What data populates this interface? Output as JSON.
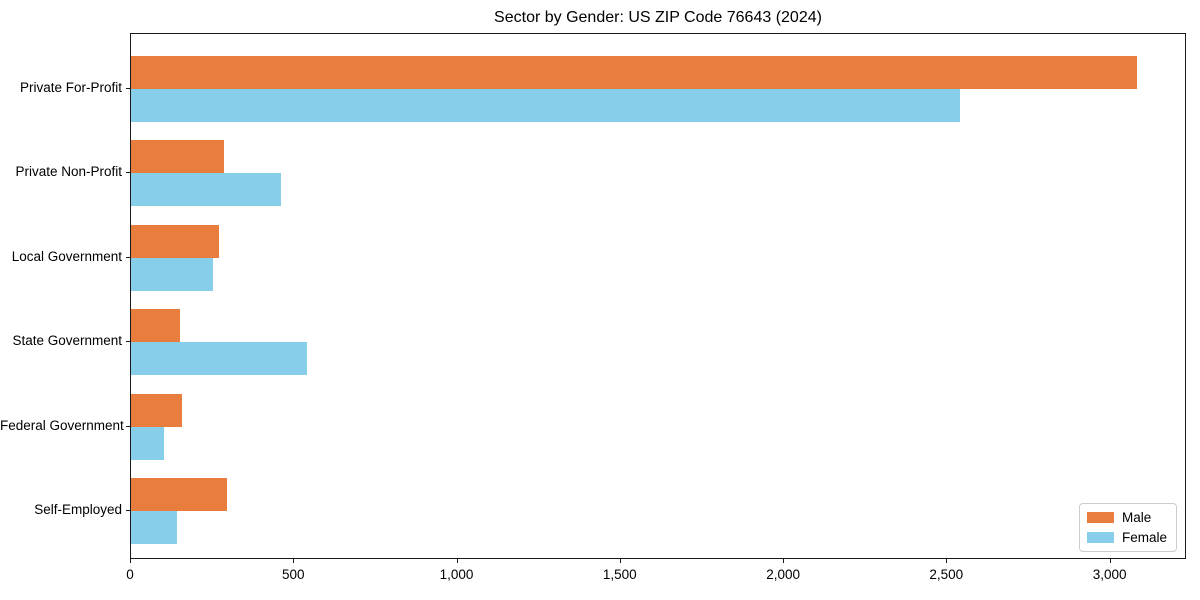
{
  "chart_data": {
    "type": "bar",
    "orientation": "horizontal",
    "title": "Sector by Gender: US ZIP Code 76643 (2024)",
    "categories": [
      "Private For-Profit",
      "Private Non-Profit",
      "Local Government",
      "State Government",
      "Federal Government",
      "Self-Employed"
    ],
    "series": [
      {
        "name": "Male",
        "color": "#E87D3E",
        "values": [
          3080,
          285,
          270,
          150,
          155,
          295
        ]
      },
      {
        "name": "Female",
        "color": "#87CEEB",
        "values": [
          2540,
          460,
          250,
          540,
          100,
          140
        ]
      }
    ],
    "xlabel": "",
    "ylabel": "",
    "xlim": [
      0,
      3234
    ],
    "x_ticks": [
      0,
      500,
      1000,
      1500,
      2000,
      2500,
      3000
    ],
    "x_tick_labels": [
      "0",
      "500",
      "1,000",
      "1,500",
      "2,000",
      "2,500",
      "3,000"
    ],
    "grid": false,
    "legend_position": "lower right",
    "colors": {
      "axis": "#1a1a1a",
      "background": "#ffffff",
      "legend_border": "#cccccc"
    }
  }
}
